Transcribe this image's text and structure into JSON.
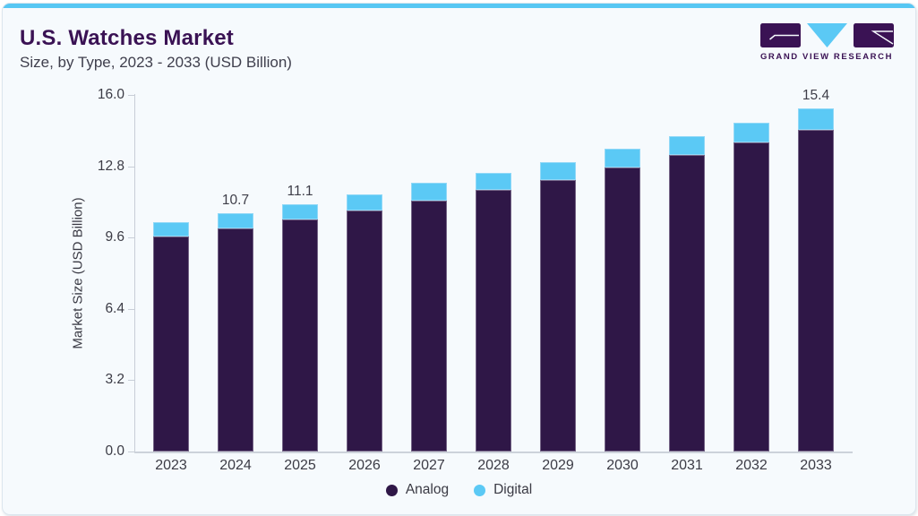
{
  "header": {
    "title": "U.S. Watches Market",
    "subtitle": "Size, by Type, 2023 - 2033 (USD Billion)"
  },
  "logo": {
    "wordmark": "GRAND VIEW RESEARCH"
  },
  "colors": {
    "accent_top": "#57C7F3",
    "title_text": "#3A1254",
    "analog": "#2F1747",
    "digital": "#5BC9F5",
    "axis_line": "#C8CED7",
    "card_background": "#F6FAFD"
  },
  "chart_data": {
    "type": "bar",
    "stacked": true,
    "title": "U.S. Watches Market",
    "subtitle": "Size, by Type, 2023 - 2033 (USD Billion)",
    "categories": [
      "2023",
      "2024",
      "2025",
      "2026",
      "2027",
      "2028",
      "2029",
      "2030",
      "2031",
      "2032",
      "2033"
    ],
    "series": [
      {
        "name": "Analog",
        "color": "#2F1747",
        "values": [
          9.65,
          10.0,
          10.4,
          10.8,
          11.25,
          11.75,
          12.2,
          12.75,
          13.3,
          13.85,
          14.45
        ]
      },
      {
        "name": "Digital",
        "color": "#5BC9F5",
        "values": [
          0.65,
          0.7,
          0.7,
          0.75,
          0.8,
          0.75,
          0.8,
          0.85,
          0.85,
          0.9,
          0.95
        ]
      }
    ],
    "totals": [
      10.3,
      10.7,
      11.1,
      11.55,
      12.05,
      12.5,
      13.0,
      13.6,
      14.15,
      14.75,
      15.4
    ],
    "bar_labels": [
      "",
      "10.7",
      "11.1",
      "",
      "",
      "",
      "",
      "",
      "",
      "",
      "15.4"
    ],
    "ylabel": "Market Size (USD Billion)",
    "yticks": [
      {
        "label": "0.0",
        "value": 0
      },
      {
        "label": "3.2",
        "value": 3.2
      },
      {
        "label": "6.4",
        "value": 6.4
      },
      {
        "label": "9.6",
        "value": 9.6
      },
      {
        "label": "12.8",
        "value": 12.8
      },
      {
        "label": "16.0",
        "value": 16
      }
    ],
    "ylim": [
      0,
      16
    ],
    "legend": [
      "Analog",
      "Digital"
    ],
    "legend_position": "bottom",
    "grid": false
  }
}
